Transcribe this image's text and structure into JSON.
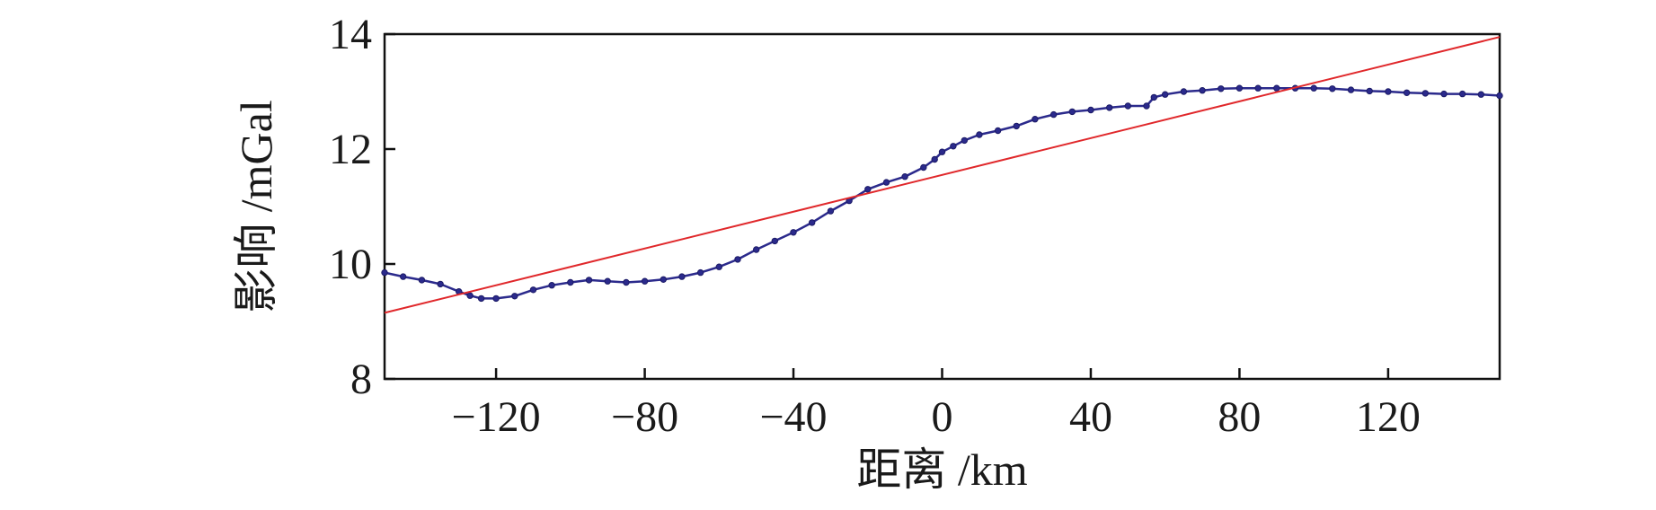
{
  "chart_data": {
    "type": "line",
    "title": "",
    "xlabel": "距离 /km",
    "ylabel": "影响 /mGal",
    "xlim": [
      -150,
      150
    ],
    "ylim": [
      8,
      14
    ],
    "xticks": [
      -120,
      -80,
      -40,
      0,
      40,
      80,
      120
    ],
    "xtick_labels": [
      "−120",
      "−80",
      "−40",
      "0",
      "40",
      "80",
      "120"
    ],
    "yticks": [
      8,
      10,
      12,
      14
    ],
    "ytick_labels": [
      "8",
      "10",
      "12",
      "14"
    ],
    "grid": false,
    "legend": "none",
    "series": [
      {
        "style": "line-with-markers",
        "color": "#2b2a8c",
        "x": [
          -150,
          -145,
          -140,
          -135,
          -130,
          -127,
          -124,
          -120,
          -115,
          -110,
          -105,
          -100,
          -95,
          -90,
          -85,
          -80,
          -75,
          -70,
          -65,
          -60,
          -55,
          -50,
          -45,
          -40,
          -35,
          -30,
          -25,
          -20,
          -15,
          -10,
          -5,
          -2,
          0,
          3,
          6,
          10,
          15,
          20,
          25,
          30,
          35,
          40,
          45,
          50,
          55,
          57,
          60,
          65,
          70,
          75,
          80,
          85,
          90,
          95,
          100,
          105,
          110,
          115,
          120,
          125,
          130,
          135,
          140,
          145,
          150
        ],
        "y": [
          9.85,
          9.78,
          9.72,
          9.65,
          9.52,
          9.45,
          9.4,
          9.4,
          9.44,
          9.55,
          9.63,
          9.68,
          9.72,
          9.7,
          9.68,
          9.7,
          9.73,
          9.78,
          9.85,
          9.95,
          10.08,
          10.25,
          10.4,
          10.55,
          10.72,
          10.92,
          11.1,
          11.3,
          11.42,
          11.52,
          11.68,
          11.82,
          11.95,
          12.05,
          12.15,
          12.25,
          12.32,
          12.4,
          12.52,
          12.6,
          12.65,
          12.68,
          12.72,
          12.75,
          12.75,
          12.9,
          12.95,
          13.0,
          13.02,
          13.05,
          13.06,
          13.06,
          13.06,
          13.06,
          13.06,
          13.05,
          13.03,
          13.01,
          13.0,
          12.98,
          12.97,
          12.96,
          12.96,
          12.95,
          12.93
        ]
      },
      {
        "style": "line",
        "color": "#e0282b",
        "x": [
          -150,
          150
        ],
        "y": [
          9.15,
          13.95
        ]
      }
    ]
  }
}
